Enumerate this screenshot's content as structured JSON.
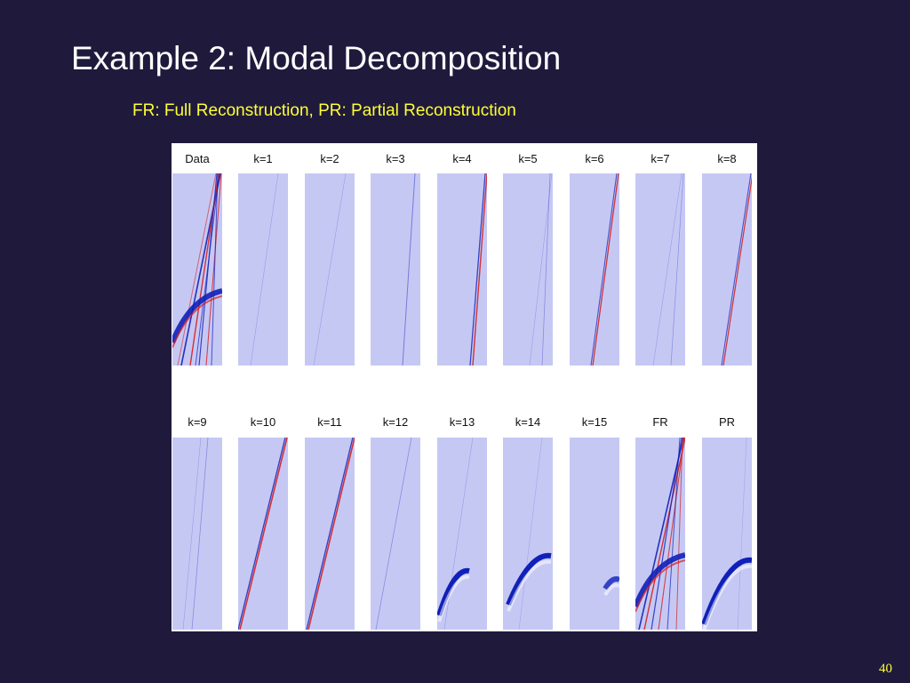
{
  "slide": {
    "title": "Example 2: Modal Decomposition",
    "subtitle": "FR: Full Reconstruction, PR: Partial Reconstruction",
    "page_number": "40"
  },
  "figure": {
    "rows": [
      {
        "panels": [
          {
            "label": "Data"
          },
          {
            "label": "k=1"
          },
          {
            "label": "k=2"
          },
          {
            "label": "k=3"
          },
          {
            "label": "k=4"
          },
          {
            "label": "k=5"
          },
          {
            "label": "k=6"
          },
          {
            "label": "k=7"
          },
          {
            "label": "k=8"
          }
        ]
      },
      {
        "panels": [
          {
            "label": "k=9"
          },
          {
            "label": "k=10"
          },
          {
            "label": "k=11"
          },
          {
            "label": "k=12"
          },
          {
            "label": "k=13"
          },
          {
            "label": "k=14"
          },
          {
            "label": "k=15"
          },
          {
            "label": "FR"
          },
          {
            "label": "PR"
          }
        ]
      }
    ],
    "colors": {
      "background": "#c6c8f4",
      "positive": "#d42020",
      "negative": "#1020b8"
    }
  }
}
